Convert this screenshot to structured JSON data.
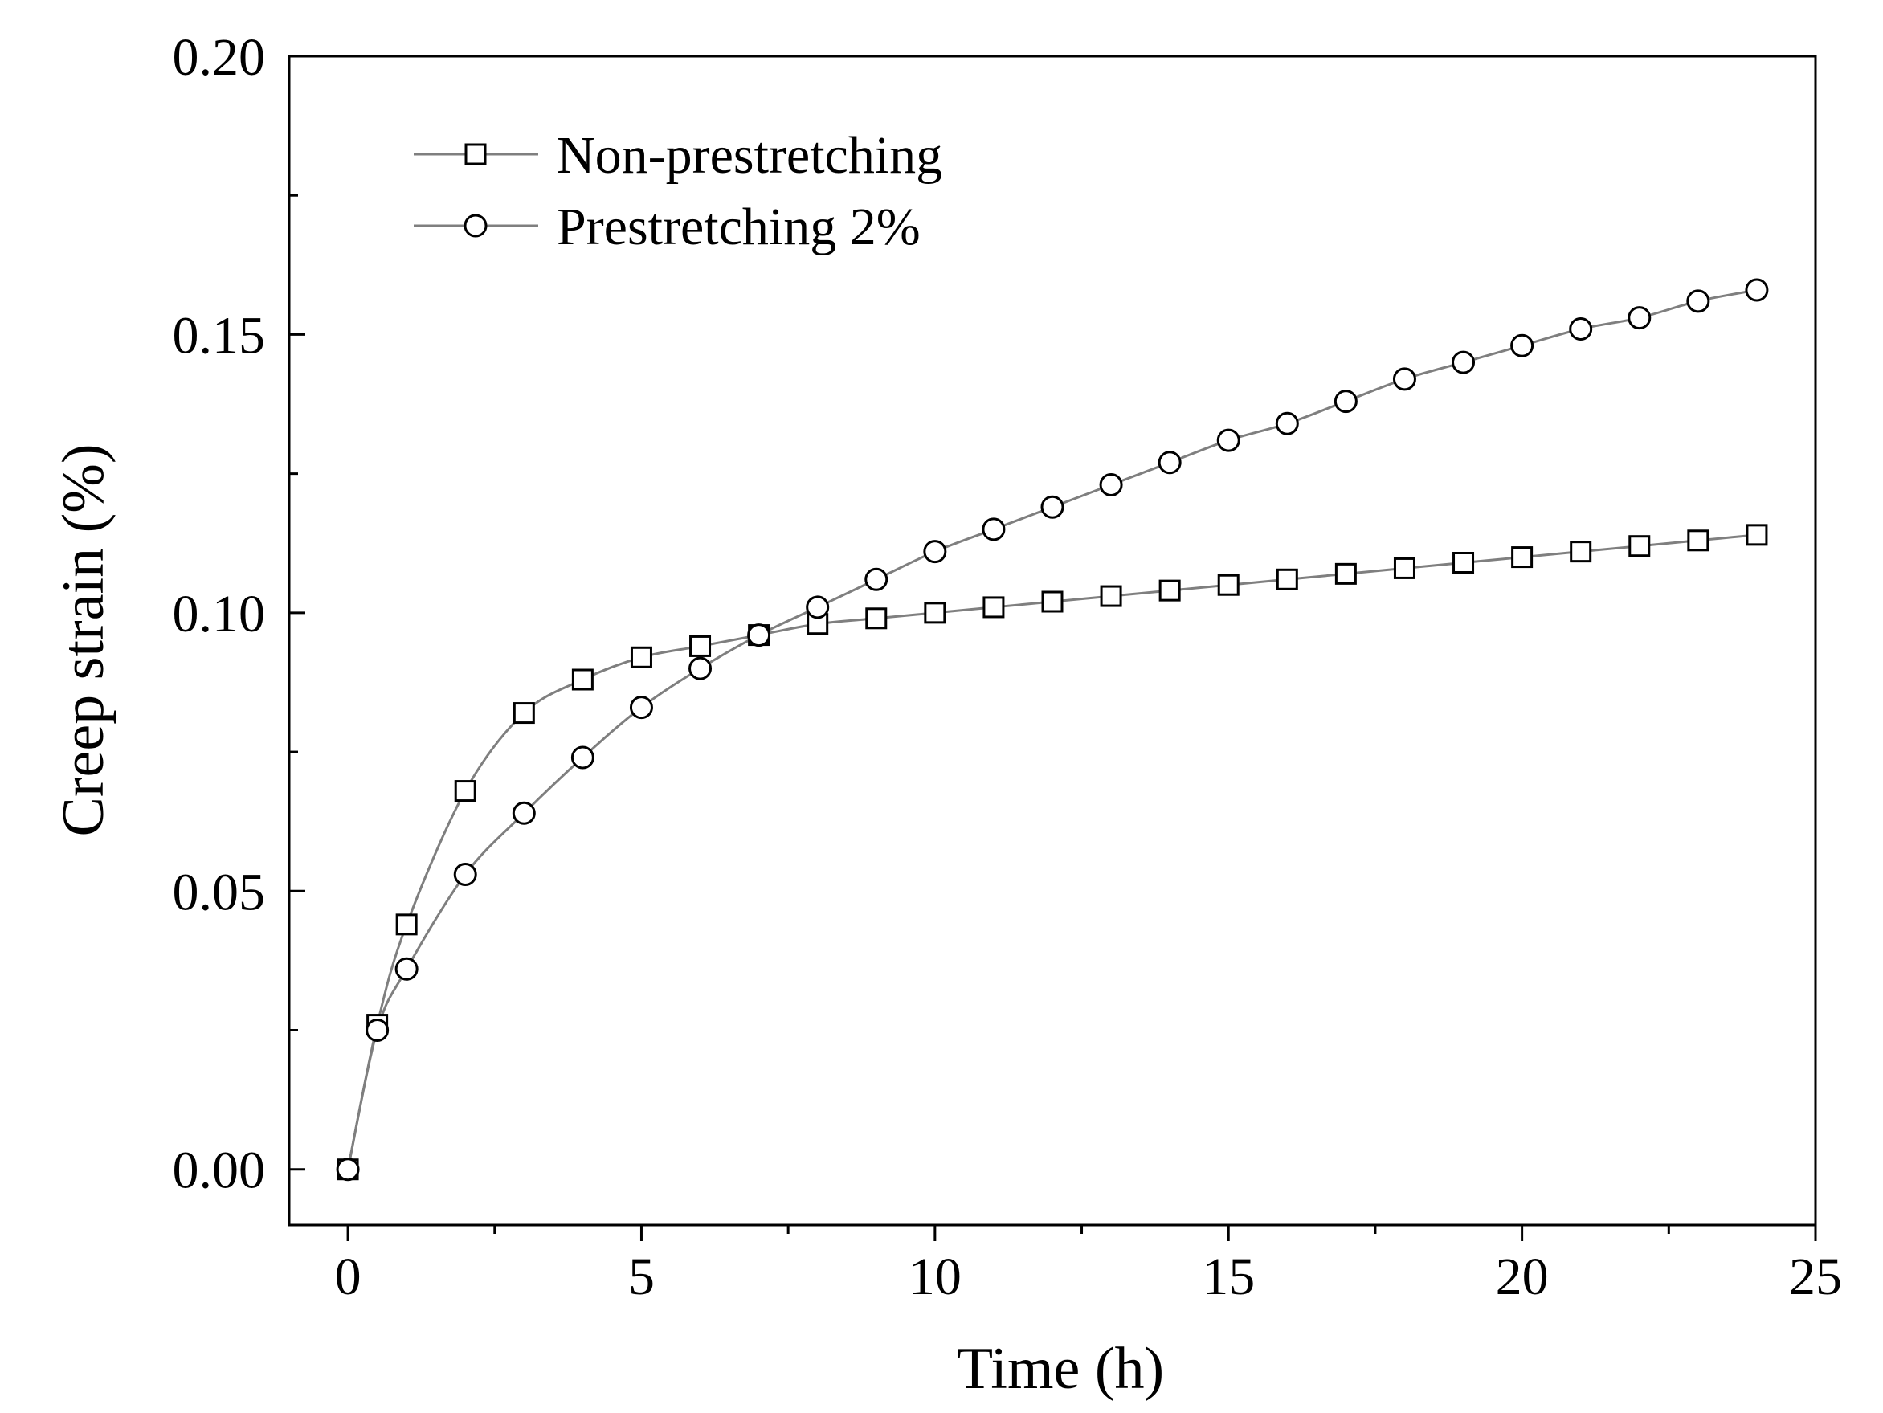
{
  "chart_data": {
    "type": "line",
    "title": "",
    "xlabel": "Time (h)",
    "ylabel": "Creep strain (%)",
    "xlim": [
      -1,
      25
    ],
    "ylim": [
      -0.01,
      0.2
    ],
    "xticks": [
      0,
      5,
      10,
      15,
      20,
      25
    ],
    "xtick_labels": [
      "0",
      "5",
      "10",
      "15",
      "20",
      "25"
    ],
    "yticks": [
      0.0,
      0.05,
      0.1,
      0.15,
      0.2
    ],
    "ytick_labels": [
      "0.00",
      "0.05",
      "0.10",
      "0.15",
      "0.20"
    ],
    "grid": false,
    "legend_position": "top-left",
    "series": [
      {
        "name": "Non-prestretching",
        "marker": "square",
        "color": "#7f7f7f",
        "x": [
          0,
          0.5,
          1,
          2,
          3,
          4,
          5,
          6,
          7,
          8,
          9,
          10,
          11,
          12,
          13,
          14,
          15,
          16,
          17,
          18,
          19,
          20,
          21,
          22,
          23,
          24
        ],
        "y": [
          0.0,
          0.026,
          0.044,
          0.068,
          0.082,
          0.088,
          0.092,
          0.094,
          0.096,
          0.098,
          0.099,
          0.1,
          0.101,
          0.102,
          0.103,
          0.104,
          0.105,
          0.106,
          0.107,
          0.108,
          0.109,
          0.11,
          0.111,
          0.112,
          0.113,
          0.114
        ]
      },
      {
        "name": "Prestretching 2%",
        "marker": "circle",
        "color": "#7f7f7f",
        "x": [
          0,
          0.5,
          1,
          2,
          3,
          4,
          5,
          6,
          7,
          8,
          9,
          10,
          11,
          12,
          13,
          14,
          15,
          16,
          17,
          18,
          19,
          20,
          21,
          22,
          23,
          24
        ],
        "y": [
          0.0,
          0.025,
          0.036,
          0.053,
          0.064,
          0.074,
          0.083,
          0.09,
          0.096,
          0.101,
          0.106,
          0.111,
          0.115,
          0.119,
          0.123,
          0.127,
          0.131,
          0.134,
          0.138,
          0.142,
          0.145,
          0.148,
          0.151,
          0.153,
          0.156,
          0.158
        ]
      }
    ]
  }
}
